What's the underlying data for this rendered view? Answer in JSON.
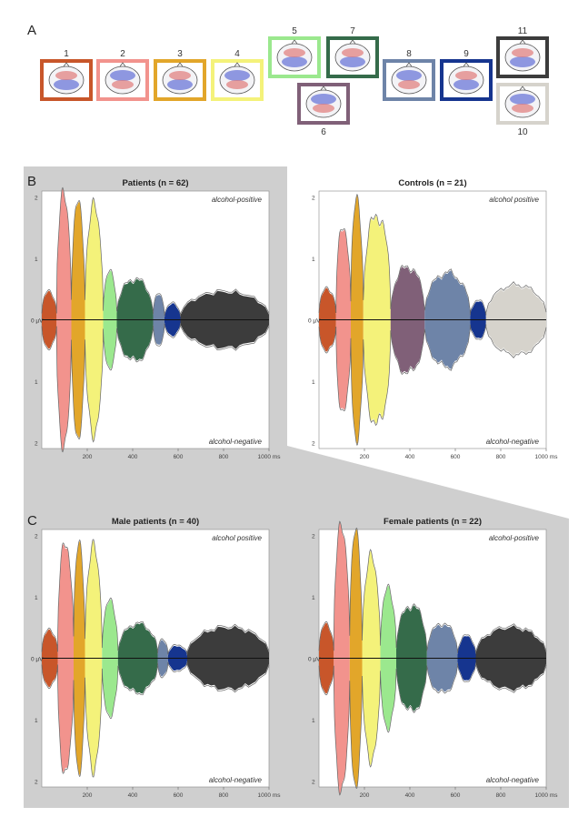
{
  "panel_labels": {
    "a": "A",
    "b": "B",
    "c": "C"
  },
  "maps": [
    {
      "id": "1",
      "color": "#c8562a"
    },
    {
      "id": "2",
      "color": "#f2938d"
    },
    {
      "id": "3",
      "color": "#e2a62a"
    },
    {
      "id": "4",
      "color": "#f4f27a"
    },
    {
      "id": "5",
      "color": "#9be88e"
    },
    {
      "id": "6",
      "color": "#806078"
    },
    {
      "id": "7",
      "color": "#356b4a"
    },
    {
      "id": "8",
      "color": "#6e84a8"
    },
    {
      "id": "9",
      "color": "#16358f"
    },
    {
      "id": "10",
      "color": "#d6d3cc"
    },
    {
      "id": "11",
      "color": "#3c3c3c"
    }
  ],
  "chart_data": [
    {
      "type": "area",
      "title": "Patients (n = 62)",
      "label_top": "alcohol-positive",
      "label_bottom": "alcohol-negative",
      "zero_label": "0 µV",
      "y_ticks": [
        "2",
        "1",
        "1",
        "2"
      ],
      "x_ticks": [
        "200",
        "400",
        "600",
        "800",
        "1000 ms"
      ],
      "xlim": [
        0,
        1000
      ],
      "ylim": [
        -2.1,
        2.1
      ],
      "segments": [
        {
          "map": "1",
          "start": 0,
          "end": 65,
          "amp": 0.45
        },
        {
          "map": "2",
          "start": 65,
          "end": 130,
          "amp": 2.0
        },
        {
          "map": "3",
          "start": 130,
          "end": 190,
          "amp": 1.85
        },
        {
          "map": "4",
          "start": 190,
          "end": 270,
          "amp": 1.8
        },
        {
          "map": "5",
          "start": 270,
          "end": 330,
          "amp": 0.75
        },
        {
          "map": "7",
          "start": 330,
          "end": 490,
          "amp": 0.65
        },
        {
          "map": "8",
          "start": 490,
          "end": 540,
          "amp": 0.4
        },
        {
          "map": "9",
          "start": 540,
          "end": 610,
          "amp": 0.25
        },
        {
          "map": "11",
          "start": 610,
          "end": 1000,
          "amp": 0.45
        }
      ]
    },
    {
      "type": "area",
      "title": "Controls (n = 21)",
      "label_top": "alcohol positive",
      "label_bottom": "alcohol-negative",
      "zero_label": "0 µV",
      "y_ticks": [
        "2",
        "1",
        "1",
        "2"
      ],
      "x_ticks": [
        "200",
        "400",
        "600",
        "800",
        "1000 ms"
      ],
      "xlim": [
        0,
        1000
      ],
      "ylim": [
        -2.1,
        2.1
      ],
      "segments": [
        {
          "map": "1",
          "start": 0,
          "end": 75,
          "amp": 0.5
        },
        {
          "map": "2",
          "start": 75,
          "end": 140,
          "amp": 1.5
        },
        {
          "map": "3",
          "start": 140,
          "end": 195,
          "amp": 1.9
        },
        {
          "map": "4",
          "start": 195,
          "end": 315,
          "amp": 1.7
        },
        {
          "map": "6",
          "start": 315,
          "end": 465,
          "amp": 0.85
        },
        {
          "map": "8",
          "start": 465,
          "end": 665,
          "amp": 0.75
        },
        {
          "map": "9",
          "start": 665,
          "end": 735,
          "amp": 0.3
        },
        {
          "map": "10",
          "start": 735,
          "end": 1000,
          "amp": 0.55
        }
      ]
    },
    {
      "type": "area",
      "title": "Male patients (n = 40)",
      "label_top": "alcohol positive",
      "label_bottom": "alcohol-negative",
      "zero_label": "0 µV",
      "y_ticks": [
        "2",
        "1",
        "1",
        "2"
      ],
      "x_ticks": [
        "200",
        "400",
        "600",
        "800",
        "1000 ms"
      ],
      "xlim": [
        0,
        1000
      ],
      "ylim": [
        -2.1,
        2.1
      ],
      "segments": [
        {
          "map": "1",
          "start": 0,
          "end": 70,
          "amp": 0.45
        },
        {
          "map": "2",
          "start": 70,
          "end": 140,
          "amp": 1.85
        },
        {
          "map": "3",
          "start": 140,
          "end": 190,
          "amp": 1.8
        },
        {
          "map": "4",
          "start": 190,
          "end": 265,
          "amp": 1.75
        },
        {
          "map": "5",
          "start": 265,
          "end": 335,
          "amp": 0.9
        },
        {
          "map": "7",
          "start": 335,
          "end": 510,
          "amp": 0.55
        },
        {
          "map": "8",
          "start": 510,
          "end": 555,
          "amp": 0.3
        },
        {
          "map": "9",
          "start": 555,
          "end": 640,
          "amp": 0.2
        },
        {
          "map": "11",
          "start": 640,
          "end": 1000,
          "amp": 0.5
        }
      ]
    },
    {
      "type": "area",
      "title": "Female patients (n = 22)",
      "label_top": "alcohol-positive",
      "label_bottom": "alcohol-negative",
      "zero_label": "0 µV",
      "y_ticks": [
        "2",
        "1",
        "1",
        "2"
      ],
      "x_ticks": [
        "200",
        "400",
        "600",
        "800",
        "1000 ms"
      ],
      "xlim": [
        0,
        1000
      ],
      "ylim": [
        -2.1,
        2.1
      ],
      "segments": [
        {
          "map": "1",
          "start": 0,
          "end": 65,
          "amp": 0.55
        },
        {
          "map": "2",
          "start": 65,
          "end": 135,
          "amp": 2.1
        },
        {
          "map": "3",
          "start": 135,
          "end": 190,
          "amp": 2.0
        },
        {
          "map": "4",
          "start": 190,
          "end": 270,
          "amp": 1.6
        },
        {
          "map": "5",
          "start": 270,
          "end": 340,
          "amp": 1.1
        },
        {
          "map": "7",
          "start": 340,
          "end": 475,
          "amp": 0.85
        },
        {
          "map": "8",
          "start": 475,
          "end": 610,
          "amp": 0.55
        },
        {
          "map": "9",
          "start": 610,
          "end": 690,
          "amp": 0.35
        },
        {
          "map": "11",
          "start": 690,
          "end": 1000,
          "amp": 0.5
        }
      ]
    }
  ]
}
